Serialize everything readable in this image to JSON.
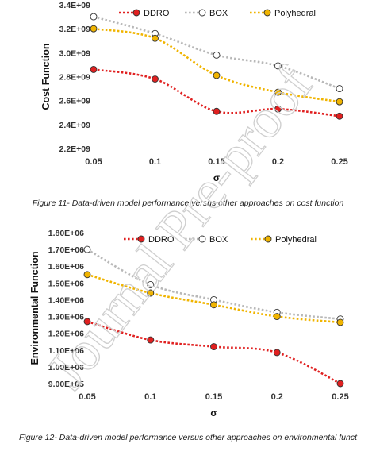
{
  "captions": {
    "fig11": "Figure 11- Data-driven model performance versus other approaches on cost function",
    "fig12": "Figure 12- Data-driven model performance versus other approaches on environmental funct"
  },
  "watermark": "Journal Pre-proof",
  "colors": {
    "DDRO": "#e02020",
    "BOX": "#b8b8b8",
    "Polyhedral": "#f0b400"
  },
  "chart_data": [
    {
      "type": "line",
      "xlabel": "σ",
      "ylabel": "Cost Function",
      "x": [
        0.05,
        0.1,
        0.15,
        0.2,
        0.25
      ],
      "x_ticks": [
        "0.05",
        "0.1",
        "0.15",
        "0.2",
        "0.25"
      ],
      "ylim": [
        2200000000,
        3400000000
      ],
      "y_ticks": [
        "2.2E+09",
        "2.4E+09",
        "2.6E+09",
        "2.8E+09",
        "3.0E+09",
        "3.2E+09",
        "3.4E+09"
      ],
      "legend_position": "top",
      "series": [
        {
          "name": "DDRO",
          "values": [
            2860000000,
            2780000000,
            2510000000,
            2530000000,
            2470000000
          ]
        },
        {
          "name": "BOX",
          "values": [
            3300000000,
            3160000000,
            2980000000,
            2890000000,
            2700000000
          ]
        },
        {
          "name": "Polyhedral",
          "values": [
            3200000000,
            3120000000,
            2810000000,
            2670000000,
            2590000000
          ]
        }
      ]
    },
    {
      "type": "line",
      "xlabel": "σ",
      "ylabel": "Environmental Function",
      "x": [
        0.05,
        0.1,
        0.15,
        0.2,
        0.25
      ],
      "x_ticks": [
        "0.05",
        "0.1",
        "0.15",
        "0.2",
        "0.25"
      ],
      "ylim": [
        900000,
        1800000
      ],
      "y_ticks": [
        "9.00E+05",
        "1.00E+06",
        "1.10E+06",
        "1.20E+06",
        "1.30E+06",
        "1.40E+06",
        "1.50E+06",
        "1.60E+06",
        "1.70E+06",
        "1.80E+06"
      ],
      "legend_position": "top",
      "series": [
        {
          "name": "DDRO",
          "values": [
            1270000,
            1160000,
            1120000,
            1085000,
            900000
          ]
        },
        {
          "name": "BOX",
          "values": [
            1700000,
            1490000,
            1400000,
            1325000,
            1285000
          ]
        },
        {
          "name": "Polyhedral",
          "values": [
            1550000,
            1440000,
            1370000,
            1300000,
            1265000
          ]
        }
      ]
    }
  ]
}
